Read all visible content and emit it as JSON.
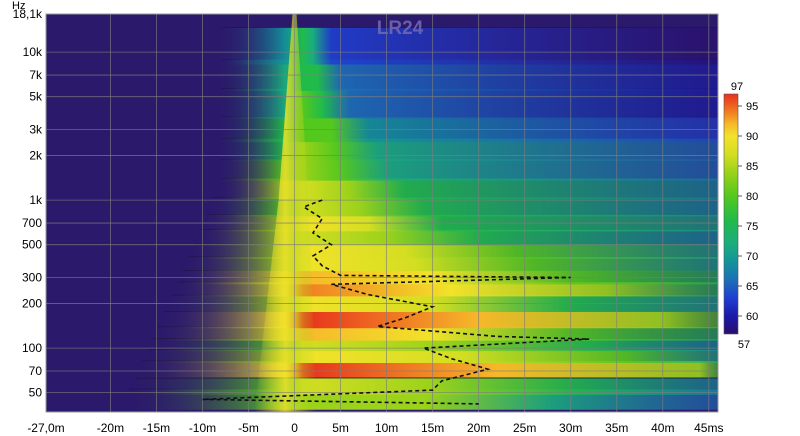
{
  "chart_data": {
    "type": "heatmap",
    "title": "LR24",
    "x_unit_label": "ms",
    "y_unit_label": "Hz",
    "xlim": [
      -27,
      46
    ],
    "ylim": [
      37,
      18100
    ],
    "y_scale": "log",
    "x_ticks": [
      {
        "value": -27,
        "label": "-27,0m"
      },
      {
        "value": -20,
        "label": "-20m"
      },
      {
        "value": -15,
        "label": "-15m"
      },
      {
        "value": -10,
        "label": "-10m"
      },
      {
        "value": -5,
        "label": "-5m"
      },
      {
        "value": 0,
        "label": "0"
      },
      {
        "value": 5,
        "label": "5m"
      },
      {
        "value": 10,
        "label": "10m"
      },
      {
        "value": 15,
        "label": "15m"
      },
      {
        "value": 20,
        "label": "20m"
      },
      {
        "value": 25,
        "label": "25m"
      },
      {
        "value": 30,
        "label": "30m"
      },
      {
        "value": 35,
        "label": "35m"
      },
      {
        "value": 40,
        "label": "40m"
      },
      {
        "value": 45,
        "label": "45ms"
      }
    ],
    "y_ticks": [
      {
        "value": 18100,
        "label": "18,1k"
      },
      {
        "value": 10000,
        "label": "10k"
      },
      {
        "value": 7000,
        "label": "7k"
      },
      {
        "value": 5000,
        "label": "5k"
      },
      {
        "value": 3000,
        "label": "3k"
      },
      {
        "value": 2000,
        "label": "2k"
      },
      {
        "value": 1000,
        "label": "1k"
      },
      {
        "value": 700,
        "label": "700"
      },
      {
        "value": 500,
        "label": "500"
      },
      {
        "value": 300,
        "label": "300"
      },
      {
        "value": 200,
        "label": "200"
      },
      {
        "value": 100,
        "label": "100"
      },
      {
        "value": 70,
        "label": "70"
      },
      {
        "value": 50,
        "label": "50"
      }
    ],
    "colorbar": {
      "min": 57,
      "max": 97,
      "min_label": "57",
      "max_label": "97",
      "ticks": [
        {
          "value": 95,
          "label": "95"
        },
        {
          "value": 90,
          "label": "90"
        },
        {
          "value": 85,
          "label": "85"
        },
        {
          "value": 80,
          "label": "80"
        },
        {
          "value": 75,
          "label": "75"
        },
        {
          "value": 70,
          "label": "70"
        },
        {
          "value": 65,
          "label": "65"
        },
        {
          "value": 60,
          "label": "60"
        }
      ],
      "stops": [
        {
          "value": 57,
          "color": "#2a0d6e"
        },
        {
          "value": 60,
          "color": "#1a1aa8"
        },
        {
          "value": 63,
          "color": "#1f3fd0"
        },
        {
          "value": 66,
          "color": "#1d6fb8"
        },
        {
          "value": 69,
          "color": "#13939a"
        },
        {
          "value": 72,
          "color": "#1aad7e"
        },
        {
          "value": 76,
          "color": "#21bb4a"
        },
        {
          "value": 80,
          "color": "#55c81e"
        },
        {
          "value": 84,
          "color": "#9bd21a"
        },
        {
          "value": 87,
          "color": "#d5de22"
        },
        {
          "value": 90,
          "color": "#f2e22a"
        },
        {
          "value": 92,
          "color": "#f6b82a"
        },
        {
          "value": 94,
          "color": "#f07d22"
        },
        {
          "value": 97,
          "color": "#e8301c"
        }
      ]
    },
    "background_color": "#2b1a6b",
    "bands": [
      {
        "freq": 45,
        "level": 84,
        "decay_ms": 28
      },
      {
        "freq": 55,
        "level": 86,
        "decay_ms": 30
      },
      {
        "freq": 72,
        "level": 95,
        "decay_ms": 44
      },
      {
        "freq": 88,
        "level": 89,
        "decay_ms": 36
      },
      {
        "freq": 105,
        "level": 86,
        "decay_ms": 32
      },
      {
        "freq": 125,
        "level": 91,
        "decay_ms": 30
      },
      {
        "freq": 155,
        "level": 95,
        "decay_ms": 40
      },
      {
        "freq": 200,
        "level": 88,
        "decay_ms": 30
      },
      {
        "freq": 250,
        "level": 93,
        "decay_ms": 34
      },
      {
        "freq": 300,
        "level": 92,
        "decay_ms": 30
      },
      {
        "freq": 370,
        "level": 89,
        "decay_ms": 26
      },
      {
        "freq": 450,
        "level": 90,
        "decay_ms": 24
      },
      {
        "freq": 560,
        "level": 87,
        "decay_ms": 20
      },
      {
        "freq": 700,
        "level": 88,
        "decay_ms": 16
      },
      {
        "freq": 900,
        "level": 85,
        "decay_ms": 14
      },
      {
        "freq": 1200,
        "level": 87,
        "decay_ms": 12
      },
      {
        "freq": 1600,
        "level": 83,
        "decay_ms": 10
      },
      {
        "freq": 2200,
        "level": 82,
        "decay_ms": 9
      },
      {
        "freq": 3000,
        "level": 80,
        "decay_ms": 8
      },
      {
        "freq": 4500,
        "level": 78,
        "decay_ms": 6
      },
      {
        "freq": 7000,
        "level": 76,
        "decay_ms": 5
      },
      {
        "freq": 11000,
        "level": 74,
        "decay_ms": 4
      }
    ],
    "impulse_time_ms": 0,
    "dashed_peak_path": [
      {
        "t": 3,
        "f": 1000
      },
      {
        "t": 1,
        "f": 900
      },
      {
        "t": 3,
        "f": 750
      },
      {
        "t": 2,
        "f": 600
      },
      {
        "t": 4,
        "f": 500
      },
      {
        "t": 2,
        "f": 420
      },
      {
        "t": 3,
        "f": 360
      },
      {
        "t": 5,
        "f": 310
      },
      {
        "t": 30,
        "f": 300
      },
      {
        "t": 4,
        "f": 270
      },
      {
        "t": 8,
        "f": 230
      },
      {
        "t": 15,
        "f": 190
      },
      {
        "t": 12,
        "f": 160
      },
      {
        "t": 9,
        "f": 140
      },
      {
        "t": 22,
        "f": 120
      },
      {
        "t": 32,
        "f": 115
      },
      {
        "t": 14,
        "f": 100
      },
      {
        "t": 17,
        "f": 85
      },
      {
        "t": 21,
        "f": 72
      },
      {
        "t": 16,
        "f": 60
      },
      {
        "t": 15,
        "f": 52
      },
      {
        "t": -10,
        "f": 45
      },
      {
        "t": 20,
        "f": 42
      }
    ],
    "grid": true
  }
}
